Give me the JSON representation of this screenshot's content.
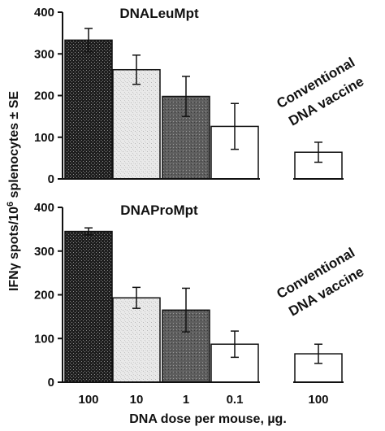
{
  "chart_data": [
    {
      "type": "bar",
      "title": "DNALeuMpt",
      "categories": [
        "100",
        "10",
        "1",
        "0.1",
        "100"
      ],
      "values": [
        333,
        262,
        198,
        126,
        64
      ],
      "errors": [
        28,
        35,
        48,
        55,
        24
      ],
      "fills": [
        "dark-crosshatch",
        "light-stipple",
        "medium-stipple",
        "white",
        "white"
      ],
      "annotation": [
        "Conventional",
        "DNA vaccine"
      ],
      "yticks": [
        0,
        100,
        200,
        300,
        400
      ],
      "ylim": [
        0,
        400
      ]
    },
    {
      "type": "bar",
      "title": "DNAProMpt",
      "categories": [
        "100",
        "10",
        "1",
        "0.1",
        "100"
      ],
      "values": [
        345,
        193,
        165,
        87,
        65
      ],
      "errors": [
        8,
        24,
        50,
        30,
        22
      ],
      "fills": [
        "dark-crosshatch",
        "light-stipple",
        "medium-stipple",
        "white",
        "white"
      ],
      "annotation": [
        "Conventional",
        "DNA vaccine"
      ],
      "yticks": [
        0,
        100,
        200,
        300,
        400
      ],
      "ylim": [
        0,
        400
      ]
    }
  ],
  "ylabel_main": "IFNγ spots/10",
  "ylabel_sup": "6",
  "ylabel_tail": " splenocytes ± SE",
  "xlabel": "DNA dose per mouse, µg.",
  "xtick_labels": [
    "100",
    "10",
    "1",
    "0.1",
    "100"
  ]
}
